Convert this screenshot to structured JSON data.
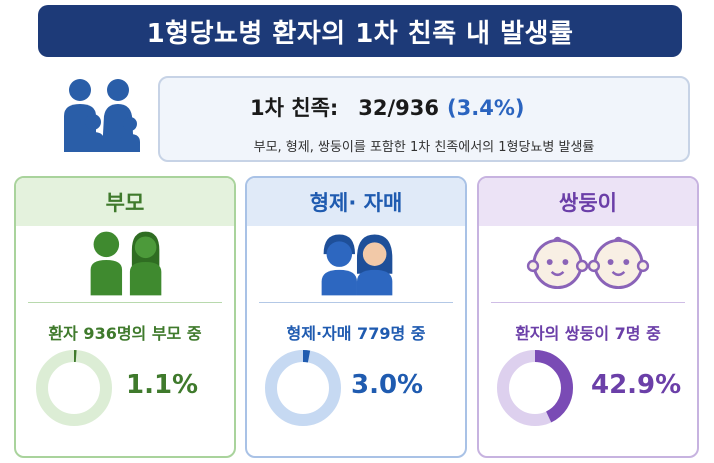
{
  "title": "1형당뇨병 환자의 1차 친족 내 발생률",
  "summary": {
    "label": "1차 친족:",
    "value": "32/936",
    "percent": "(3.4%)",
    "description": "부모, 형제, 쌍둥이를 포함한 1차 친족에서의 1형당뇨병 발생률"
  },
  "cards": [
    {
      "title": "부모",
      "subtitle": "환자 936명의 부모 중",
      "percent_label": "1.1%",
      "fraction": 0.011,
      "color": "#3f7a2c",
      "track": "#dcedd5",
      "icon": "parents-icon"
    },
    {
      "title": "형제· 자매",
      "subtitle": "형제·자매 779명 중",
      "percent_label": "3.0%",
      "fraction": 0.03,
      "color": "#1f5bb0",
      "track": "#c6d9f2",
      "icon": "siblings-icon"
    },
    {
      "title": "쌍둥이",
      "subtitle": "환자의  쌍둥이 7명 중",
      "percent_label": "42.9%",
      "fraction": 0.429,
      "color": "#7a4bb5",
      "track": "#ddd0ee",
      "icon": "twins-icon"
    }
  ],
  "colors": {
    "title_bg": "#1d3a78",
    "accent_blue": "#2b64bf",
    "green": "#3f7a2c",
    "blue": "#1f5bb0",
    "purple": "#6b3fa8"
  }
}
